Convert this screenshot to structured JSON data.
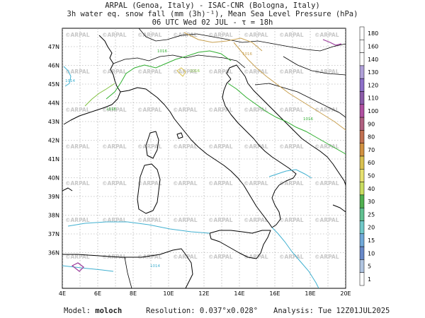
{
  "header": {
    "line1": "ARPAL (Genoa, Italy)  -  ISAC-CNR (Bologna, Italy)",
    "line2": "3h water eq. snow fall (mm (3h)⁻¹), Mean Sea Level Pressure (hPa)",
    "line3": "06 UTC Wed 02 JUL  -  τ = 18h"
  },
  "axes": {
    "lon_labels": [
      "4E",
      "6E",
      "8E",
      "10E",
      "12E",
      "14E",
      "16E",
      "18E",
      "20E"
    ],
    "lat_labels": [
      "47N",
      "46N",
      "45N",
      "44N",
      "43N",
      "42N",
      "41N",
      "40N",
      "39N",
      "38N",
      "37N",
      "36N"
    ]
  },
  "watermark": "©ARPAL",
  "isobar_labels": [
    "1016",
    "1016",
    "1014",
    "1016",
    "1016",
    "1016",
    "1014"
  ],
  "colorbar": {
    "levels": [
      "180",
      "160",
      "140",
      "130",
      "120",
      "110",
      "100",
      "90",
      "80",
      "70",
      "60",
      "50",
      "40",
      "30",
      "25",
      "20",
      "15",
      "10",
      "5",
      "1"
    ],
    "colors": [
      "#ffffff",
      "#ffffff",
      "#ffffff",
      "#b0a0d8",
      "#8c6fc8",
      "#8a5aa8",
      "#b050a0",
      "#b06080",
      "#c07050",
      "#d09040",
      "#d8c050",
      "#e6e070",
      "#c8dc60",
      "#50b050",
      "#60c090",
      "#70c8c8",
      "#70a8d8",
      "#6888c8",
      "#b0c4e0",
      "#ffffff"
    ]
  },
  "footer": {
    "model_label": "Model:",
    "model_value": "moloch",
    "resolution_label": "Resolution:",
    "resolution_value": "0.037°x0.028°",
    "analysis_label": "Analysis:",
    "analysis_value": "Tue 12Z01JUL2025"
  }
}
